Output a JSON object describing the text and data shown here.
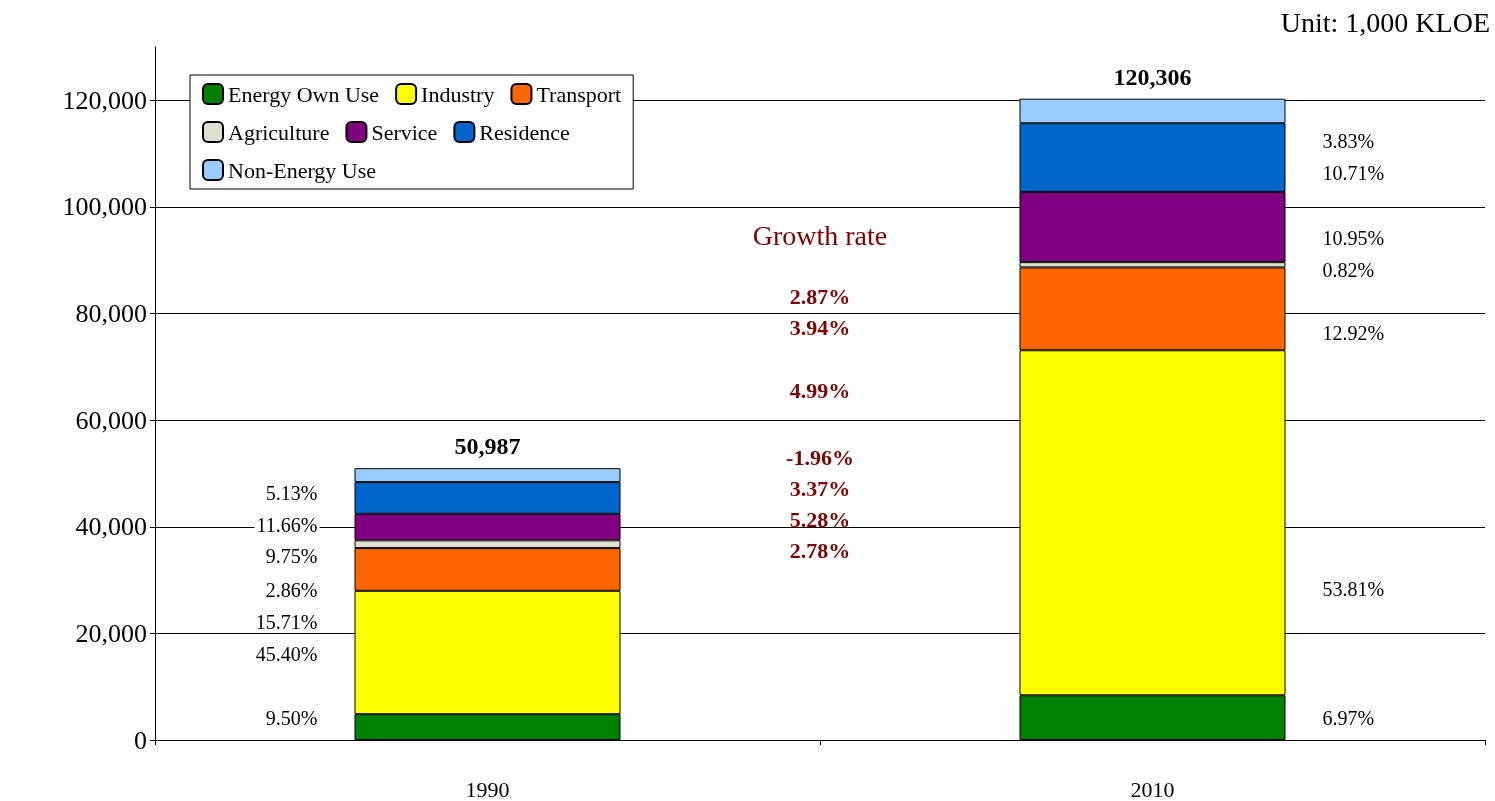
{
  "chart_data": {
    "type": "bar",
    "stacked": true,
    "categories": [
      "1990",
      "2010"
    ],
    "series": [
      {
        "name": "Energy Own Use",
        "color": "#008000",
        "values": [
          4844,
          8385
        ]
      },
      {
        "name": "Industry",
        "color": "#ffff00",
        "values": [
          23143,
          64723
        ]
      },
      {
        "name": "Transport",
        "color": "#ff6600",
        "values": [
          8010,
          15544
        ]
      },
      {
        "name": "Agriculture",
        "color": "#e0e0d0",
        "values": [
          1458,
          987
        ]
      },
      {
        "name": "Service",
        "color": "#800080",
        "values": [
          4971,
          13174
        ]
      },
      {
        "name": "Residence",
        "color": "#0066cc",
        "values": [
          5945,
          12885
        ]
      },
      {
        "name": "Non-Energy Use",
        "color": "#99ccff",
        "values": [
          2616,
          4608
        ]
      }
    ],
    "totals": [
      "50,987",
      "120,306"
    ],
    "ylim": [
      0,
      130000
    ],
    "yticks": [
      {
        "value": 0,
        "label": "0"
      },
      {
        "value": 20000,
        "label": "20,000"
      },
      {
        "value": 40000,
        "label": "40,000"
      },
      {
        "value": 60000,
        "label": "60,000"
      },
      {
        "value": 80000,
        "label": "80,000"
      },
      {
        "value": 100000,
        "label": "100,000"
      },
      {
        "value": 120000,
        "label": "120,000"
      }
    ],
    "grid": "y",
    "legend": "top left",
    "annotations": [
      "Unit: 1,000 KLOE",
      "Growth rate",
      "2.87%",
      "3.94%",
      "4.99%",
      "-1.96%",
      "3.37%",
      "5.28%",
      "2.78%",
      "5.13%",
      "11.66%",
      "9.75%",
      "2.86%",
      "15.71%",
      "45.40%",
      "9.50%",
      "3.83%",
      "10.71%",
      "10.95%",
      "0.82%",
      "12.92%",
      "53.81%",
      "6.97%"
    ]
  }
}
